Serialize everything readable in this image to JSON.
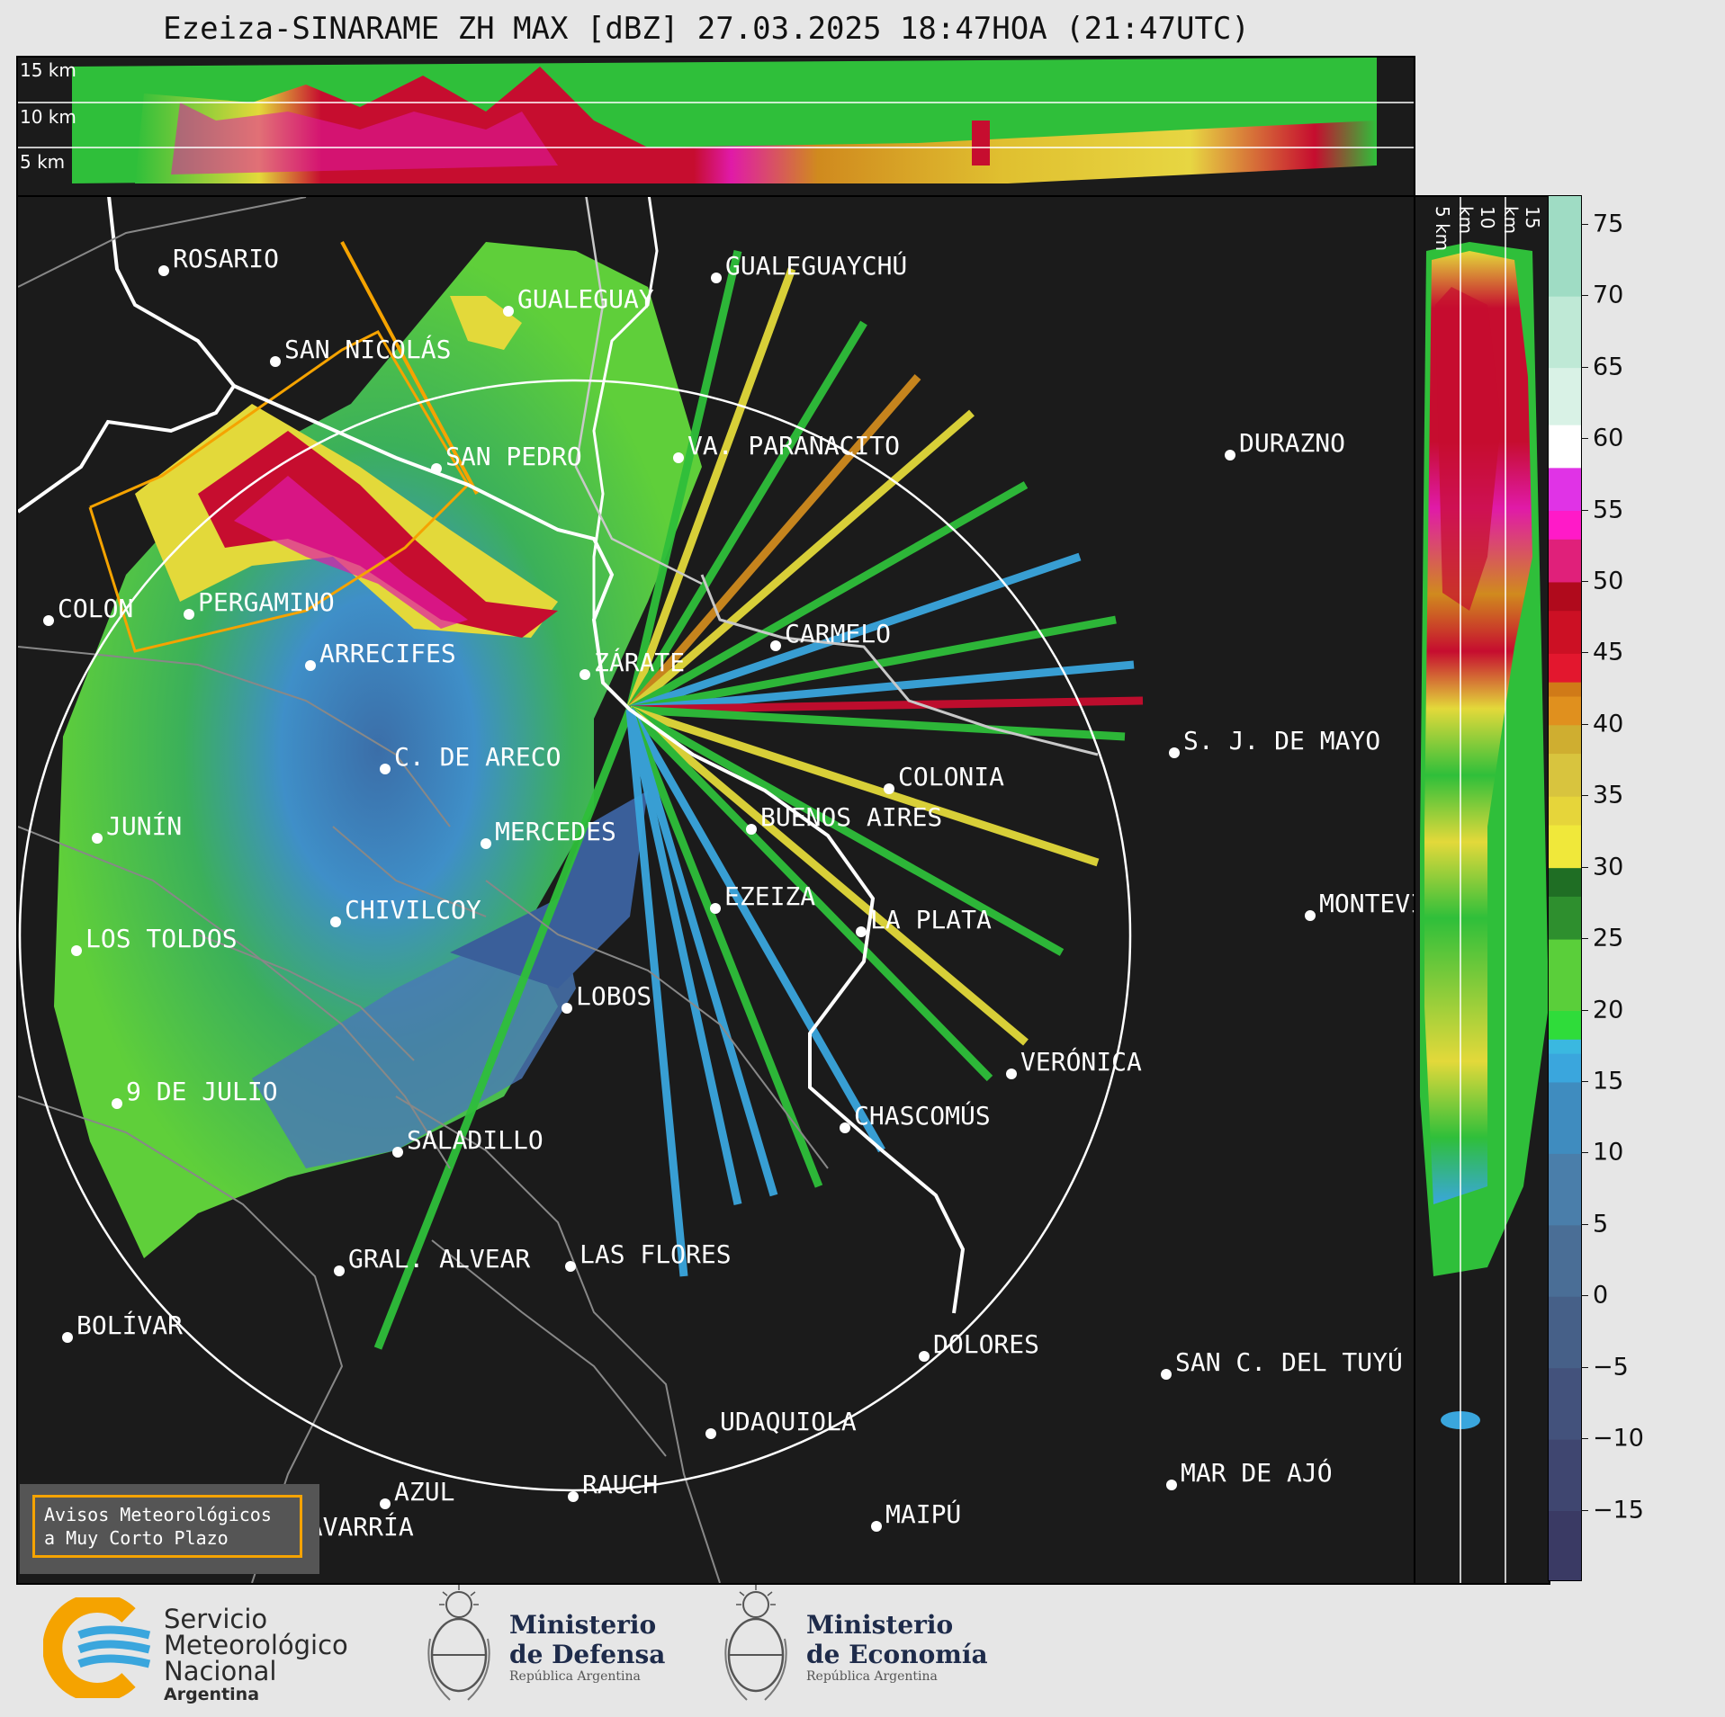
{
  "title": "Ezeiza-SINARAME ZH MAX [dBZ] 27.03.2025 18:47HOA (21:47UTC)",
  "top_section_heights": [
    "15 km",
    "10 km",
    "5 km"
  ],
  "side_section_heights": [
    "5 km",
    "10 km",
    "15 km"
  ],
  "colorbar": {
    "unit": "dBZ",
    "ticks": [
      "75",
      "70",
      "65",
      "60",
      "55",
      "50",
      "45",
      "40",
      "35",
      "30",
      "25",
      "20",
      "15",
      "10",
      "5",
      "0",
      "−5",
      "−10",
      "−15"
    ],
    "range": [
      -20,
      77
    ]
  },
  "radar_site": "EZEIZA",
  "cities": [
    "ROSARIO",
    "GUALEGUAYCHÚ",
    "GUALEGUAY",
    "SAN NICOLÁS",
    "DURAZNO",
    "SAN PEDRO",
    "VA. PARANACITO",
    "COLON",
    "PERGAMINO",
    "CARMELO",
    "ARRECIFES",
    "ZÁRATE",
    "S. J. DE MAYO",
    "C. DE ARECO",
    "COLONIA",
    "JUNÍN",
    "BUENOS AIRES",
    "MERCEDES",
    "EZEIZA",
    "MONTEVIDEO",
    "CHIVILCOY",
    "LA PLATA",
    "LOS TOLDOS",
    "LOBOS",
    "VERÓNICA",
    "9 DE JULIO",
    "CHASCOMÚS",
    "SALADILLO",
    "GRAL. ALVEAR",
    "LAS FLORES",
    "BOLÍVAR",
    "DOLORES",
    "SAN C. DEL TUYÚ",
    "UDAQUIOLA",
    "MAR DE AJÓ",
    "AZUL",
    "RAUCH",
    "OLAVARRÍA",
    "MAIPÚ"
  ],
  "warning_box": {
    "line1": "Avisos Meteorológicos",
    "line2": "a Muy Corto Plazo",
    "border_color": "#f5a300"
  },
  "logos": {
    "smn": {
      "line1": "Servicio",
      "line2": "Meteorológico",
      "line3": "Nacional",
      "line4": "Argentina"
    },
    "defensa": {
      "line1": "Ministerio",
      "line2": "de Defensa",
      "line3": "República Argentina"
    },
    "economia": {
      "line1": "Ministerio",
      "line2": "de Economía",
      "line3": "República Argentina"
    }
  },
  "colors": {
    "background": "#1b1b1b",
    "warning": "#f5a300",
    "smn_orange": "#f5a300",
    "smn_blue": "#3aa6dd",
    "ministry_text": "#1e2b4a"
  }
}
